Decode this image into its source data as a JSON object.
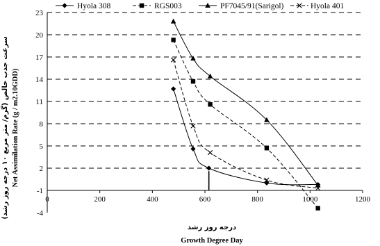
{
  "chart_data": {
    "type": "line",
    "title": "",
    "xlabel_fa": "درجه روز رشد",
    "xlabel_en": "Growth Degree Day",
    "ylabel_fa": "سرعت جذب خالص (گرم/ متر مربع ۱۰ درجه روز رشد)",
    "ylabel_en": "Net Assimilation Rate (g / m2.10GDD)",
    "xlim": [
      0,
      1200
    ],
    "ylim": [
      -4,
      23
    ],
    "x_ticks": [
      "0",
      "200",
      "400",
      "600",
      "800",
      "1000",
      "1200"
    ],
    "y_ticks": [
      "-4",
      "-1",
      "2",
      "5",
      "8",
      "11",
      "14",
      "17",
      "20",
      "23"
    ],
    "grid": "horizontal dashed",
    "legend_position": "top",
    "series": [
      {
        "name": "Hyola 308",
        "marker": "diamond",
        "line": "solid",
        "x": [
          480,
          555,
          615,
          835,
          1030
        ],
        "y": [
          12.7,
          4.6,
          2.0,
          0.0,
          -0.2
        ]
      },
      {
        "name": "RGS003",
        "marker": "square",
        "line": "dashed",
        "x": [
          480,
          555,
          620,
          835,
          1030
        ],
        "y": [
          19.3,
          13.7,
          10.6,
          4.7,
          -3.4
        ]
      },
      {
        "name": "PF7045/91(Sarigol)",
        "marker": "triangle",
        "line": "solid",
        "x": [
          480,
          555,
          620,
          835,
          1030
        ],
        "y": [
          21.8,
          16.8,
          14.4,
          8.5,
          -0.3
        ]
      },
      {
        "name": "Hyola 401",
        "marker": "x",
        "line": "dashed",
        "x": [
          480,
          555,
          620,
          835,
          1030
        ],
        "y": [
          16.6,
          7.7,
          4.1,
          0.4,
          -0.7
        ]
      }
    ]
  }
}
